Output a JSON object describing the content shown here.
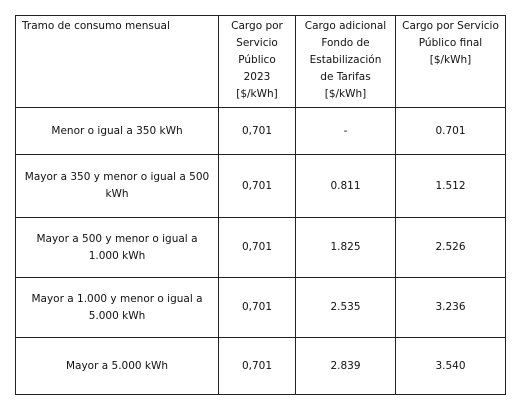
{
  "table": {
    "header": [
      "Tramo de consumo mensual",
      "Cargo por Servicio Público 2023 [$/kWh]",
      "Cargo adicional Fondo de Estabilización de Tarifas [$/kWh]",
      "Cargo por Servicio Público final [$/kWh]"
    ],
    "rows": [
      [
        "Menor o igual a 350 kWh",
        "0,701",
        "-",
        "0.701"
      ],
      [
        "Mayor a 350 y menor o igual a 500 kWh",
        "0,701",
        "0.811",
        "1.512"
      ],
      [
        "Mayor a 500 y menor o igual a 1.000 kWh",
        "0,701",
        "1.825",
        "2.526"
      ],
      [
        "Mayor a 1.000 y menor o igual a 5.000 kWh",
        "0,701",
        "2.535",
        "3.236"
      ],
      [
        "Mayor a 5.000 kWh",
        "0,701",
        "2.839",
        "3.540"
      ]
    ]
  }
}
